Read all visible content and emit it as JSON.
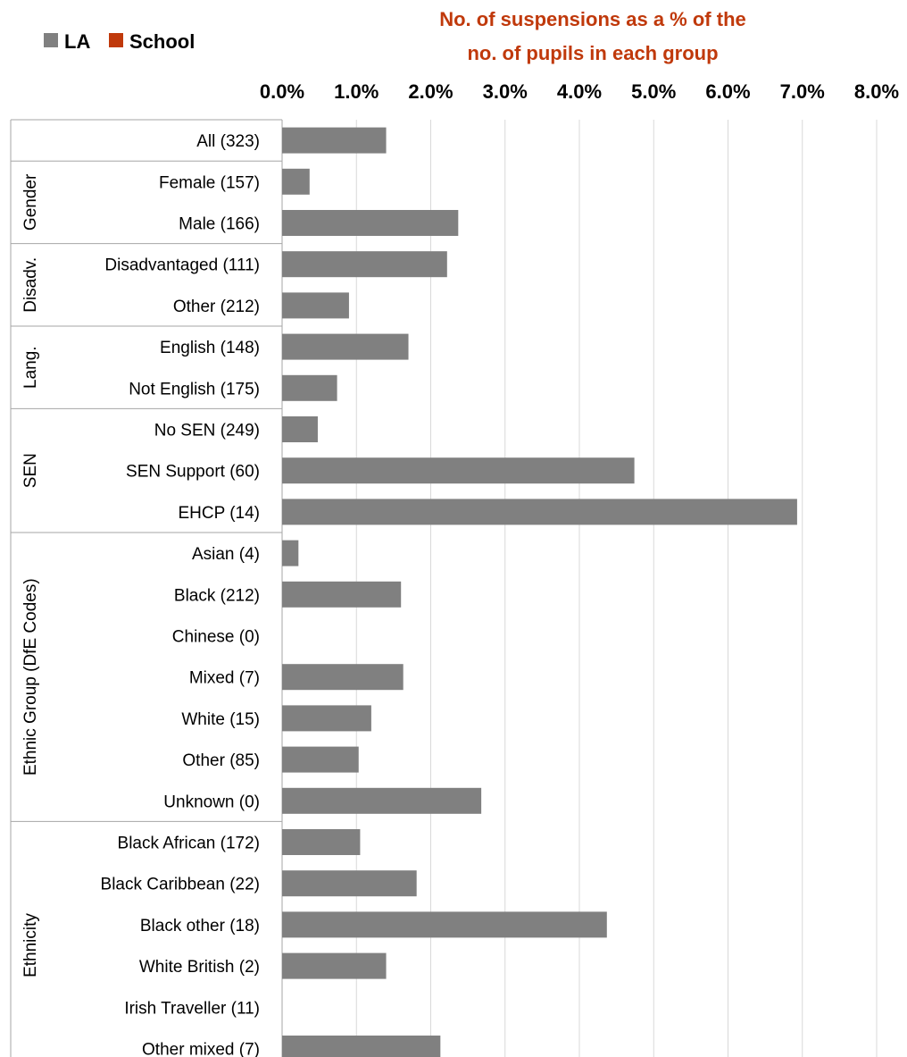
{
  "chart_data": {
    "type": "bar",
    "orientation": "horizontal",
    "title": "No. of suspensions as a % of the no. of pupils in each group",
    "title_lines": [
      "No. of suspensions as a % of the",
      "no. of pupils in each group"
    ],
    "xlim": [
      0,
      8
    ],
    "x_ticks": [
      "0.0%",
      "1.0%",
      "2.0%",
      "3.0%",
      "4.0%",
      "5.0%",
      "6.0%",
      "7.0%",
      "8.0%"
    ],
    "grid": true,
    "legend_position": "top-left",
    "series": [
      {
        "name": "LA",
        "color": "#808080"
      },
      {
        "name": "School",
        "color": "#c0390b"
      }
    ],
    "categories": [
      "All (323)",
      "Female (157)",
      "Male (166)",
      "Disadvantaged (111)",
      "Other (212)",
      "English (148)",
      "Not English (175)",
      "No SEN (249)",
      "SEN Support (60)",
      "EHCP (14)",
      "Asian (4)",
      "Black (212)",
      "Chinese (0)",
      "Mixed (7)",
      "White (15)",
      "Other (85)",
      "Unknown (0)",
      "Black African (172)",
      "Black Caribbean (22)",
      "Black other (18)",
      "White British (2)",
      "Irish Traveller (11)",
      "Other mixed (7)"
    ],
    "values_LA": [
      1.4,
      0.37,
      2.37,
      2.22,
      0.9,
      1.7,
      0.74,
      0.48,
      4.74,
      6.93,
      0.22,
      1.6,
      0,
      1.63,
      1.2,
      1.03,
      2.68,
      1.05,
      1.81,
      4.37,
      1.4,
      0,
      2.13
    ],
    "values_School": [
      null,
      null,
      null,
      null,
      null,
      null,
      null,
      null,
      null,
      null,
      null,
      null,
      null,
      null,
      null,
      null,
      null,
      null,
      null,
      null,
      null,
      null,
      null
    ],
    "groups": [
      {
        "label": "",
        "start": 0,
        "end": 0
      },
      {
        "label": "Gender",
        "start": 1,
        "end": 2
      },
      {
        "label": "Disadv.",
        "start": 3,
        "end": 4
      },
      {
        "label": "Lang.",
        "start": 5,
        "end": 6
      },
      {
        "label": "SEN",
        "start": 7,
        "end": 9
      },
      {
        "label": "Ethnic Group (DfE Codes)",
        "start": 10,
        "end": 16
      },
      {
        "label": "Ethnicity",
        "start": 17,
        "end": 22
      }
    ]
  }
}
